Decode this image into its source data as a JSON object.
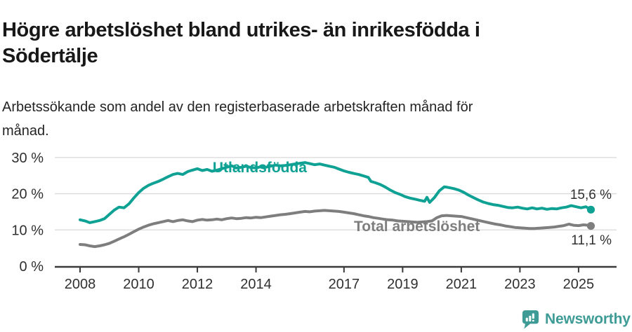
{
  "header": {
    "title_lines": [
      "Högre arbetslöshet bland utrikes- än inrikesfödda i",
      "Södertälje"
    ],
    "subtitle_lines": [
      "Arbetssökande som andel av den registerbaserade arbetskraften månad för",
      "månad."
    ]
  },
  "branding": {
    "name": "Newsworthy",
    "brand_color": "#3E9B95",
    "icon": "newsworthy-speech-bubble-bar-chart-icon"
  },
  "chart_data": {
    "type": "line",
    "title": "Högre arbetslöshet bland utrikes- än inrikesfödda i Södertälje",
    "subtitle": "Arbetssökande som andel av den registerbaserade arbetskraften månad för månad.",
    "unit": "%",
    "legend": "inline-labels-on-lines",
    "grid": true,
    "x_axis": {
      "ticks": [
        "2008",
        "2010",
        "2012",
        "2014",
        "2017",
        "2019",
        "2021",
        "2023",
        "2025"
      ],
      "tick_years": [
        2008,
        2010,
        2012,
        2014,
        2017,
        2019,
        2021,
        2023,
        2025
      ],
      "range_years": [
        2007.15,
        2026.3
      ]
    },
    "y_axis": {
      "ticks": [
        {
          "value": 0,
          "label": "0 %"
        },
        {
          "value": 10,
          "label": "10 %"
        },
        {
          "value": 20,
          "label": "20 %"
        },
        {
          "value": 30,
          "label": "30 %"
        }
      ],
      "range": [
        0,
        30
      ]
    },
    "series": [
      {
        "name": "Utlandsfödda",
        "color": "#0FA294",
        "end_label": "15,6 %",
        "end_value": 15.6,
        "points": [
          [
            2008.0,
            12.8
          ],
          [
            2008.17,
            12.5
          ],
          [
            2008.33,
            12.0
          ],
          [
            2008.5,
            12.3
          ],
          [
            2008.67,
            12.6
          ],
          [
            2008.83,
            13.1
          ],
          [
            2009.0,
            14.3
          ],
          [
            2009.17,
            15.5
          ],
          [
            2009.33,
            16.3
          ],
          [
            2009.5,
            16.1
          ],
          [
            2009.67,
            17.2
          ],
          [
            2009.83,
            18.8
          ],
          [
            2010.0,
            20.3
          ],
          [
            2010.17,
            21.5
          ],
          [
            2010.33,
            22.3
          ],
          [
            2010.5,
            22.9
          ],
          [
            2010.67,
            23.4
          ],
          [
            2010.83,
            24.0
          ],
          [
            2011.0,
            24.7
          ],
          [
            2011.17,
            25.3
          ],
          [
            2011.33,
            25.6
          ],
          [
            2011.5,
            25.3
          ],
          [
            2011.67,
            26.1
          ],
          [
            2011.83,
            26.5
          ],
          [
            2012.0,
            26.9
          ],
          [
            2012.17,
            26.4
          ],
          [
            2012.33,
            26.7
          ],
          [
            2012.5,
            26.2
          ],
          [
            2012.67,
            26.5
          ],
          [
            2012.83,
            26.9
          ],
          [
            2013.0,
            27.3
          ],
          [
            2013.17,
            27.7
          ],
          [
            2013.33,
            27.1
          ],
          [
            2013.5,
            27.3
          ],
          [
            2013.67,
            27.6
          ],
          [
            2013.83,
            27.2
          ],
          [
            2014.0,
            27.1
          ],
          [
            2014.17,
            27.5
          ],
          [
            2014.33,
            27.3
          ],
          [
            2014.5,
            27.6
          ],
          [
            2014.67,
            27.9
          ],
          [
            2014.83,
            27.7
          ],
          [
            2015.0,
            27.8
          ],
          [
            2015.17,
            28.0
          ],
          [
            2015.33,
            28.2
          ],
          [
            2015.5,
            28.4
          ],
          [
            2015.67,
            28.6
          ],
          [
            2015.83,
            28.3
          ],
          [
            2016.0,
            28.0
          ],
          [
            2016.17,
            28.2
          ],
          [
            2016.33,
            27.9
          ],
          [
            2016.5,
            27.6
          ],
          [
            2016.67,
            27.3
          ],
          [
            2016.83,
            26.8
          ],
          [
            2017.0,
            26.3
          ],
          [
            2017.17,
            25.9
          ],
          [
            2017.33,
            25.6
          ],
          [
            2017.5,
            25.3
          ],
          [
            2017.67,
            24.9
          ],
          [
            2017.83,
            24.5
          ],
          [
            2017.92,
            23.4
          ],
          [
            2018.08,
            23.0
          ],
          [
            2018.25,
            22.5
          ],
          [
            2018.42,
            21.8
          ],
          [
            2018.58,
            21.0
          ],
          [
            2018.75,
            20.3
          ],
          [
            2018.92,
            19.8
          ],
          [
            2019.08,
            19.2
          ],
          [
            2019.25,
            18.8
          ],
          [
            2019.42,
            18.5
          ],
          [
            2019.58,
            18.2
          ],
          [
            2019.75,
            17.9
          ],
          [
            2019.83,
            19.0
          ],
          [
            2019.92,
            17.6
          ],
          [
            2020.08,
            18.9
          ],
          [
            2020.25,
            20.8
          ],
          [
            2020.42,
            21.9
          ],
          [
            2020.58,
            21.7
          ],
          [
            2020.75,
            21.4
          ],
          [
            2020.92,
            21.0
          ],
          [
            2021.08,
            20.4
          ],
          [
            2021.25,
            19.6
          ],
          [
            2021.42,
            18.9
          ],
          [
            2021.58,
            18.3
          ],
          [
            2021.75,
            17.7
          ],
          [
            2021.92,
            17.3
          ],
          [
            2022.08,
            17.0
          ],
          [
            2022.25,
            16.8
          ],
          [
            2022.42,
            16.5
          ],
          [
            2022.58,
            16.2
          ],
          [
            2022.75,
            16.1
          ],
          [
            2022.92,
            16.3
          ],
          [
            2023.08,
            16.0
          ],
          [
            2023.25,
            15.8
          ],
          [
            2023.42,
            16.1
          ],
          [
            2023.58,
            15.8
          ],
          [
            2023.75,
            16.0
          ],
          [
            2023.92,
            15.7
          ],
          [
            2024.08,
            15.9
          ],
          [
            2024.25,
            15.8
          ],
          [
            2024.42,
            16.1
          ],
          [
            2024.58,
            16.3
          ],
          [
            2024.75,
            16.7
          ],
          [
            2024.92,
            16.4
          ],
          [
            2025.08,
            16.1
          ],
          [
            2025.25,
            16.4
          ],
          [
            2025.42,
            15.6
          ]
        ]
      },
      {
        "name": "Total arbetslöshet",
        "color": "#7E7E7E",
        "end_label": "11,1 %",
        "end_value": 11.1,
        "points": [
          [
            2008.0,
            6.0
          ],
          [
            2008.17,
            5.9
          ],
          [
            2008.33,
            5.6
          ],
          [
            2008.5,
            5.4
          ],
          [
            2008.67,
            5.6
          ],
          [
            2008.83,
            5.9
          ],
          [
            2009.0,
            6.3
          ],
          [
            2009.17,
            6.9
          ],
          [
            2009.33,
            7.5
          ],
          [
            2009.5,
            8.1
          ],
          [
            2009.67,
            8.8
          ],
          [
            2009.83,
            9.5
          ],
          [
            2010.0,
            10.2
          ],
          [
            2010.17,
            10.8
          ],
          [
            2010.33,
            11.3
          ],
          [
            2010.5,
            11.7
          ],
          [
            2010.67,
            12.0
          ],
          [
            2010.83,
            12.3
          ],
          [
            2011.0,
            12.6
          ],
          [
            2011.17,
            12.3
          ],
          [
            2011.33,
            12.6
          ],
          [
            2011.5,
            12.8
          ],
          [
            2011.67,
            12.5
          ],
          [
            2011.83,
            12.3
          ],
          [
            2012.0,
            12.7
          ],
          [
            2012.17,
            12.9
          ],
          [
            2012.33,
            12.7
          ],
          [
            2012.5,
            12.8
          ],
          [
            2012.67,
            13.0
          ],
          [
            2012.83,
            12.8
          ],
          [
            2013.0,
            13.1
          ],
          [
            2013.17,
            13.3
          ],
          [
            2013.33,
            13.1
          ],
          [
            2013.5,
            13.2
          ],
          [
            2013.67,
            13.4
          ],
          [
            2013.83,
            13.3
          ],
          [
            2014.0,
            13.5
          ],
          [
            2014.17,
            13.4
          ],
          [
            2014.33,
            13.6
          ],
          [
            2014.5,
            13.8
          ],
          [
            2014.67,
            14.0
          ],
          [
            2014.83,
            14.2
          ],
          [
            2015.0,
            14.3
          ],
          [
            2015.17,
            14.5
          ],
          [
            2015.33,
            14.7
          ],
          [
            2015.5,
            14.9
          ],
          [
            2015.67,
            15.1
          ],
          [
            2015.83,
            15.0
          ],
          [
            2016.0,
            15.2
          ],
          [
            2016.17,
            15.3
          ],
          [
            2016.33,
            15.4
          ],
          [
            2016.5,
            15.3
          ],
          [
            2016.67,
            15.2
          ],
          [
            2016.83,
            15.1
          ],
          [
            2017.0,
            14.9
          ],
          [
            2017.17,
            14.7
          ],
          [
            2017.33,
            14.5
          ],
          [
            2017.5,
            14.2
          ],
          [
            2017.67,
            13.9
          ],
          [
            2017.83,
            13.7
          ],
          [
            2018.0,
            13.4
          ],
          [
            2018.17,
            13.2
          ],
          [
            2018.33,
            13.0
          ],
          [
            2018.5,
            12.8
          ],
          [
            2018.67,
            12.7
          ],
          [
            2018.83,
            12.5
          ],
          [
            2019.0,
            12.4
          ],
          [
            2019.17,
            12.3
          ],
          [
            2019.33,
            12.2
          ],
          [
            2019.5,
            12.1
          ],
          [
            2019.67,
            12.2
          ],
          [
            2019.83,
            12.3
          ],
          [
            2020.0,
            12.5
          ],
          [
            2020.17,
            13.4
          ],
          [
            2020.33,
            13.9
          ],
          [
            2020.5,
            14.0
          ],
          [
            2020.67,
            13.9
          ],
          [
            2020.83,
            13.8
          ],
          [
            2021.0,
            13.7
          ],
          [
            2021.17,
            13.4
          ],
          [
            2021.33,
            13.1
          ],
          [
            2021.5,
            12.8
          ],
          [
            2021.67,
            12.5
          ],
          [
            2021.83,
            12.2
          ],
          [
            2022.0,
            11.9
          ],
          [
            2022.17,
            11.6
          ],
          [
            2022.33,
            11.4
          ],
          [
            2022.5,
            11.1
          ],
          [
            2022.67,
            10.9
          ],
          [
            2022.83,
            10.7
          ],
          [
            2023.0,
            10.6
          ],
          [
            2023.17,
            10.5
          ],
          [
            2023.33,
            10.4
          ],
          [
            2023.5,
            10.4
          ],
          [
            2023.67,
            10.5
          ],
          [
            2023.83,
            10.6
          ],
          [
            2024.0,
            10.7
          ],
          [
            2024.17,
            10.8
          ],
          [
            2024.33,
            11.0
          ],
          [
            2024.5,
            11.2
          ],
          [
            2024.67,
            11.6
          ],
          [
            2024.83,
            11.3
          ],
          [
            2025.0,
            11.2
          ],
          [
            2025.17,
            11.4
          ],
          [
            2025.33,
            11.3
          ],
          [
            2025.42,
            11.1
          ]
        ]
      }
    ]
  }
}
